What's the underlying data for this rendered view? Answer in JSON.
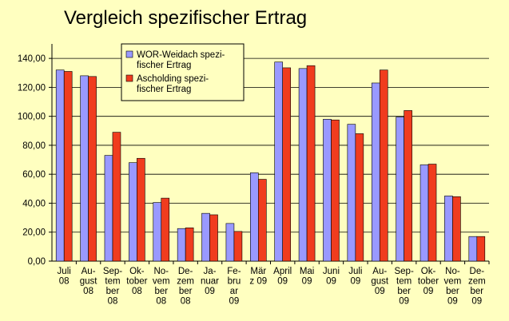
{
  "chart_data": {
    "type": "bar",
    "title": "Vergleich spezifischer Ertrag",
    "categories": [
      [
        "Juli",
        "08"
      ],
      [
        "Au-",
        "gust",
        "08"
      ],
      [
        "Sep-",
        "tem",
        "ber",
        "08"
      ],
      [
        "Ok-",
        "tober",
        "08"
      ],
      [
        "No-",
        "vem",
        "ber",
        "08"
      ],
      [
        "De-",
        "zem",
        "ber",
        "08"
      ],
      [
        "Ja-",
        "nuar",
        "09"
      ],
      [
        "Fe-",
        "bru",
        "ar",
        "09"
      ],
      [
        "Mär",
        "z 09"
      ],
      [
        "April",
        "09"
      ],
      [
        "Mai",
        "09"
      ],
      [
        "Juni",
        "09"
      ],
      [
        "Juli",
        "09"
      ],
      [
        "Au-",
        "gust",
        "09"
      ],
      [
        "Sep-",
        "tem",
        "ber",
        "09"
      ],
      [
        "Ok-",
        "tober",
        "09"
      ],
      [
        "No-",
        "vem",
        "ber",
        "09"
      ],
      [
        "De-",
        "zem",
        "ber",
        "09"
      ]
    ],
    "series": [
      {
        "name": [
          "WOR-Weidach spezi-",
          "fischer Ertrag"
        ],
        "color": "#9999ff",
        "values": [
          132,
          128,
          73,
          68,
          40.5,
          22.5,
          33,
          26,
          61,
          137.5,
          133,
          98,
          94.5,
          123,
          99.5,
          66.5,
          45,
          17
        ]
      },
      {
        "name": [
          "Ascholding spezi-",
          "fischer Ertrag"
        ],
        "color": "#f03c1e",
        "values": [
          131,
          127.5,
          89,
          71,
          43.5,
          23,
          32,
          20.5,
          56.5,
          133.5,
          135,
          97.5,
          88,
          132,
          104,
          67,
          44.5,
          17
        ]
      }
    ],
    "ylim": [
      0,
      150
    ],
    "yticks": [
      {
        "value": 0,
        "label": "0,00"
      },
      {
        "value": 20,
        "label": "20,00"
      },
      {
        "value": 40,
        "label": "40,00"
      },
      {
        "value": 60,
        "label": "60,00"
      },
      {
        "value": 80,
        "label": "80,00"
      },
      {
        "value": 100,
        "label": "100,00"
      },
      {
        "value": 120,
        "label": "120,00"
      },
      {
        "value": 140,
        "label": "140,00"
      }
    ],
    "grid": true
  }
}
